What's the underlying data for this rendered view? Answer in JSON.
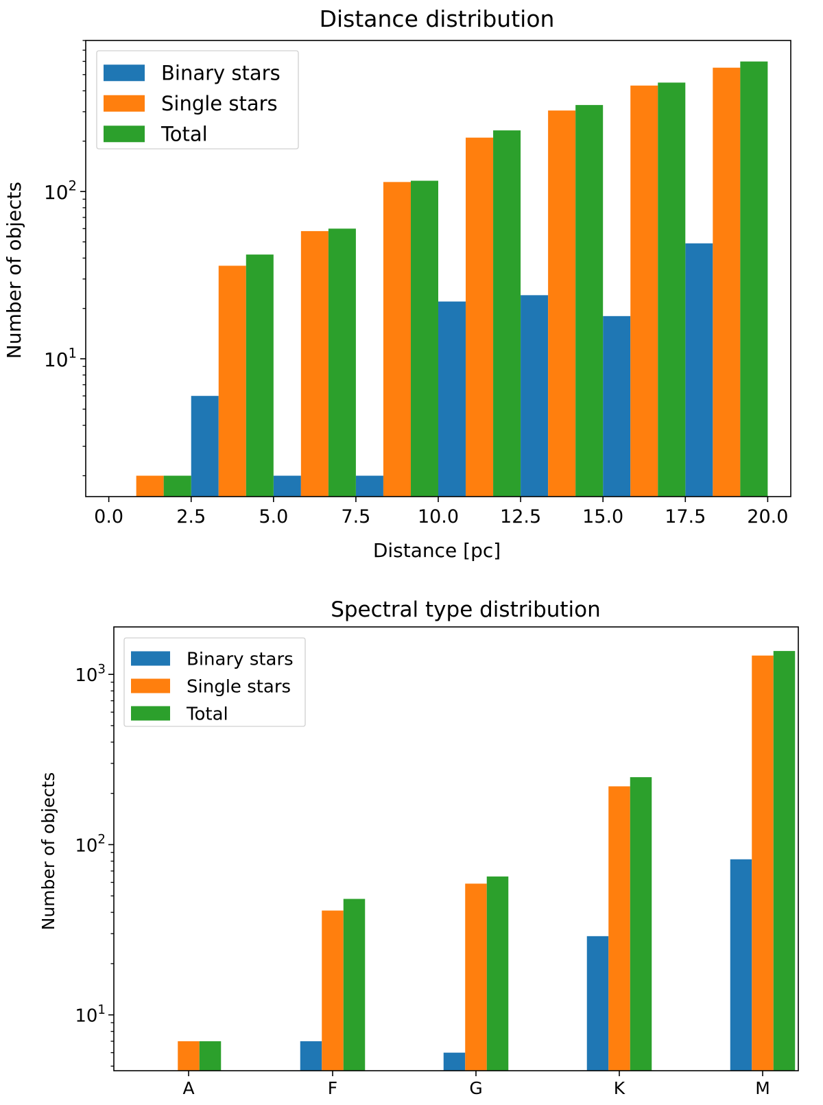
{
  "chart_data": [
    {
      "type": "bar",
      "title": "Distance distribution",
      "xlabel": "Distance [pc]",
      "ylabel": "Number of objects",
      "yscale": "log",
      "xlim": [
        -0.7,
        20.7
      ],
      "ylim": [
        1.5,
        800
      ],
      "xticks": [
        "0.0",
        "2.5",
        "5.0",
        "7.5",
        "10.0",
        "12.5",
        "15.0",
        "17.5",
        "20.0"
      ],
      "ytick_labels": [
        {
          "base": "10",
          "exp": "1",
          "value": 10
        },
        {
          "base": "10",
          "exp": "2",
          "value": 100
        }
      ],
      "legend_loc": "upper left",
      "bin_width": 2.5,
      "bin_starts": [
        0,
        2.5,
        5,
        7.5,
        10,
        12.5,
        15,
        17.5
      ],
      "series": [
        {
          "name": "Binary stars",
          "color": "#1f77b4",
          "values": [
            0,
            6,
            2,
            2,
            22,
            24,
            18,
            49
          ]
        },
        {
          "name": "Single stars",
          "color": "#ff7f0e",
          "values": [
            2,
            36,
            58,
            114,
            210,
            305,
            430,
            550
          ]
        },
        {
          "name": "Total",
          "color": "#2ca02c",
          "values": [
            2,
            42,
            60,
            116,
            232,
            329,
            448,
            599
          ]
        }
      ]
    },
    {
      "type": "bar",
      "title": "Spectral type distribution",
      "xlabel": "",
      "ylabel": "Number of objects",
      "yscale": "log",
      "ylim": [
        4.7,
        1900
      ],
      "categories": [
        "A",
        "F",
        "G",
        "K",
        "M"
      ],
      "ytick_labels": [
        {
          "base": "10",
          "exp": "1",
          "value": 10
        },
        {
          "base": "10",
          "exp": "2",
          "value": 100
        },
        {
          "base": "10",
          "exp": "3",
          "value": 1000
        }
      ],
      "legend_loc": "upper left",
      "series": [
        {
          "name": "Binary stars",
          "color": "#1f77b4",
          "values": [
            0,
            7,
            6,
            29,
            82
          ]
        },
        {
          "name": "Single stars",
          "color": "#ff7f0e",
          "values": [
            7,
            41,
            59,
            220,
            1290
          ]
        },
        {
          "name": "Total",
          "color": "#2ca02c",
          "values": [
            7,
            48,
            65,
            249,
            1372
          ]
        }
      ]
    }
  ]
}
